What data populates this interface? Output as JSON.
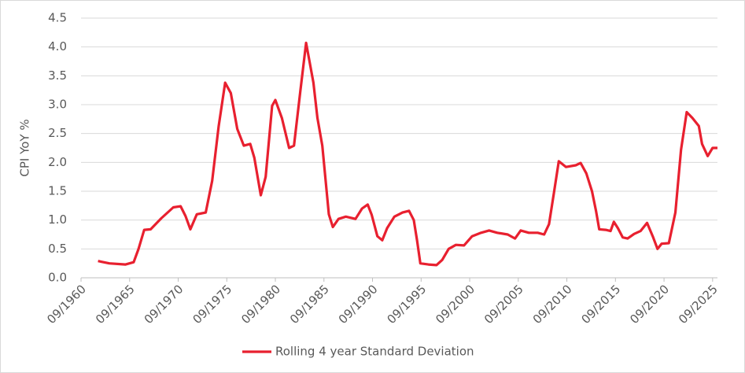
{
  "chart_data": {
    "type": "line",
    "y_label": "CPI YoY %",
    "xlim": [
      "09/1960",
      "03/2026"
    ],
    "xticks": [
      "09/1960",
      "09/1965",
      "09/1970",
      "09/1975",
      "09/1980",
      "09/1985",
      "09/1990",
      "09/1995",
      "09/2000",
      "09/2005",
      "09/2010",
      "09/2015",
      "09/2020",
      "09/2025"
    ],
    "ylim": [
      0,
      4.5
    ],
    "yticks": [
      {
        "value": 0,
        "label": "0.0"
      },
      0.5,
      {
        "value": 1,
        "label": "1.0"
      },
      1.5,
      {
        "value": 2,
        "label": "2.0"
      },
      2.5,
      {
        "value": 3,
        "label": "3.0"
      },
      3.5,
      {
        "value": 4,
        "label": "4.0"
      },
      4.5
    ],
    "grid": true,
    "legend": "bottom",
    "x": [
      "06/1962",
      "08/1963",
      "04/1965",
      "02/1966",
      "08/1966",
      "03/1967",
      "11/1967",
      "12/1968",
      "03/1970",
      "12/1970",
      "06/1971",
      "12/1971",
      "08/1972",
      "07/1973",
      "03/1974",
      "11/1974",
      "07/1975",
      "02/1976",
      "10/1976",
      "06/1977",
      "02/1978",
      "07/1978",
      "03/1979",
      "09/1979",
      "05/1980",
      "09/1980",
      "05/1981",
      "02/1982",
      "08/1982",
      "04/1983",
      "11/1983",
      "08/1984",
      "01/1985",
      "07/1985",
      "03/1986",
      "08/1986",
      "03/1987",
      "12/1987",
      "12/1988",
      "08/1989",
      "03/1990",
      "08/1990",
      "03/1991",
      "09/1991",
      "03/1992",
      "12/1992",
      "10/1993",
      "06/1994",
      "12/1994",
      "04/1995",
      "08/1995",
      "06/1996",
      "04/1997",
      "11/1997",
      "07/1998",
      "04/1999",
      "02/2000",
      "12/2000",
      "11/2001",
      "09/2002",
      "07/2003",
      "08/2004",
      "05/2005",
      "12/2005",
      "10/2006",
      "09/2007",
      "05/2008",
      "11/2008",
      "05/2009",
      "11/2009",
      "08/2010",
      "08/2011",
      "02/2012",
      "09/2012",
      "04/2013",
      "09/2013",
      "01/2014",
      "09/2014",
      "03/2015",
      "07/2015",
      "12/2015",
      "06/2016",
      "12/2016",
      "08/2017",
      "04/2018",
      "12/2018",
      "07/2019",
      "01/2020",
      "06/2020",
      "03/2021",
      "11/2021",
      "06/2022",
      "01/2023",
      "08/2023",
      "04/2024",
      "08/2024",
      "03/2025",
      "09/2025",
      "03/2026"
    ],
    "series": [
      {
        "name": "Rolling 4 year Standard Deviation",
        "color": "#e8202f",
        "values": [
          0.29,
          0.25,
          0.23,
          0.27,
          0.5,
          0.83,
          0.84,
          1.03,
          1.22,
          1.24,
          1.07,
          0.84,
          1.1,
          1.13,
          1.68,
          2.63,
          3.38,
          3.2,
          2.58,
          2.29,
          2.32,
          2.08,
          1.43,
          1.75,
          2.98,
          3.08,
          2.77,
          2.25,
          2.29,
          3.25,
          4.07,
          3.38,
          2.77,
          2.29,
          1.1,
          0.88,
          1.02,
          1.06,
          1.02,
          1.2,
          1.27,
          1.09,
          0.72,
          0.65,
          0.86,
          1.06,
          1.13,
          1.16,
          1.0,
          0.65,
          0.25,
          0.23,
          0.22,
          0.31,
          0.5,
          0.57,
          0.56,
          0.72,
          0.78,
          0.82,
          0.78,
          0.75,
          0.68,
          0.82,
          0.78,
          0.78,
          0.75,
          0.93,
          1.47,
          2.02,
          1.92,
          1.95,
          1.99,
          1.81,
          1.5,
          1.16,
          0.84,
          0.83,
          0.81,
          0.97,
          0.86,
          0.7,
          0.68,
          0.76,
          0.81,
          0.95,
          0.72,
          0.5,
          0.59,
          0.6,
          1.13,
          2.22,
          2.87,
          2.77,
          2.63,
          2.32,
          2.11,
          2.25,
          2.25
        ]
      }
    ]
  }
}
